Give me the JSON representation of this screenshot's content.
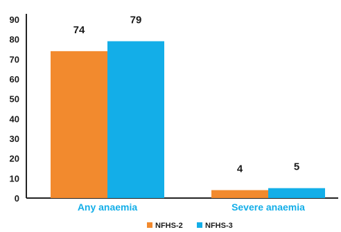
{
  "chart_data": {
    "type": "bar",
    "categories": [
      "Any anaemia",
      "Severe anaemia"
    ],
    "series": [
      {
        "name": "NFHS-2",
        "values": [
          74,
          4
        ],
        "color": "#f28a2e"
      },
      {
        "name": "NFHS-3",
        "values": [
          79,
          5
        ],
        "color": "#13aee8"
      }
    ],
    "data_labels": [
      [
        "74",
        "4"
      ],
      [
        "79",
        "5"
      ]
    ],
    "ylim": [
      0,
      90
    ],
    "yticks": [
      0,
      10,
      20,
      30,
      40,
      50,
      60,
      70,
      80,
      90
    ],
    "grid": false,
    "legend_position": "bottom-center",
    "category_label_color": "#13aee8",
    "axis_color": "#222222"
  }
}
